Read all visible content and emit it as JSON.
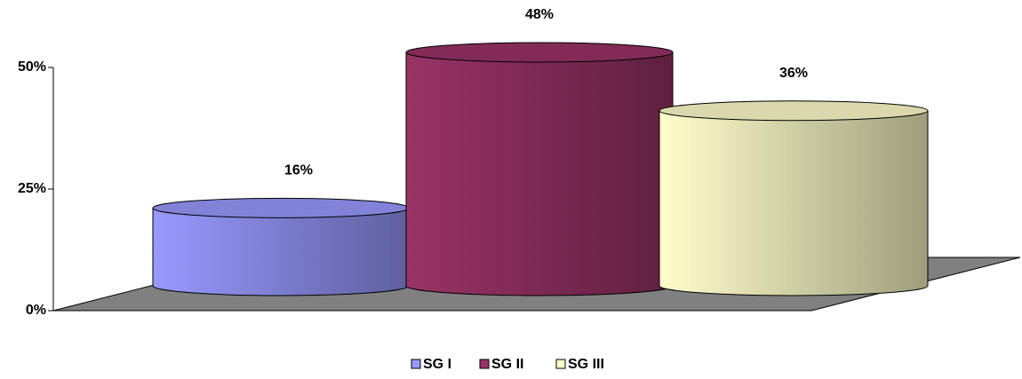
{
  "chart_data": {
    "type": "cylinder",
    "categories": [
      null
    ],
    "series": [
      {
        "name": "SG I",
        "color": "#9999ff",
        "values": [
          16
        ],
        "value_labels": [
          "16%"
        ]
      },
      {
        "name": "SG II",
        "color": "#993366",
        "values": [
          48
        ],
        "value_labels": [
          "48%"
        ]
      },
      {
        "name": "SG III",
        "color": "#ffffcc",
        "values": [
          36
        ],
        "value_labels": [
          "36%"
        ]
      }
    ],
    "ylim": [
      0,
      50
    ],
    "yticks": [
      {
        "value": 0,
        "label": "0%"
      },
      {
        "value": 25,
        "label": "25%"
      },
      {
        "value": 50,
        "label": "50%"
      }
    ],
    "legend": "bottom"
  }
}
